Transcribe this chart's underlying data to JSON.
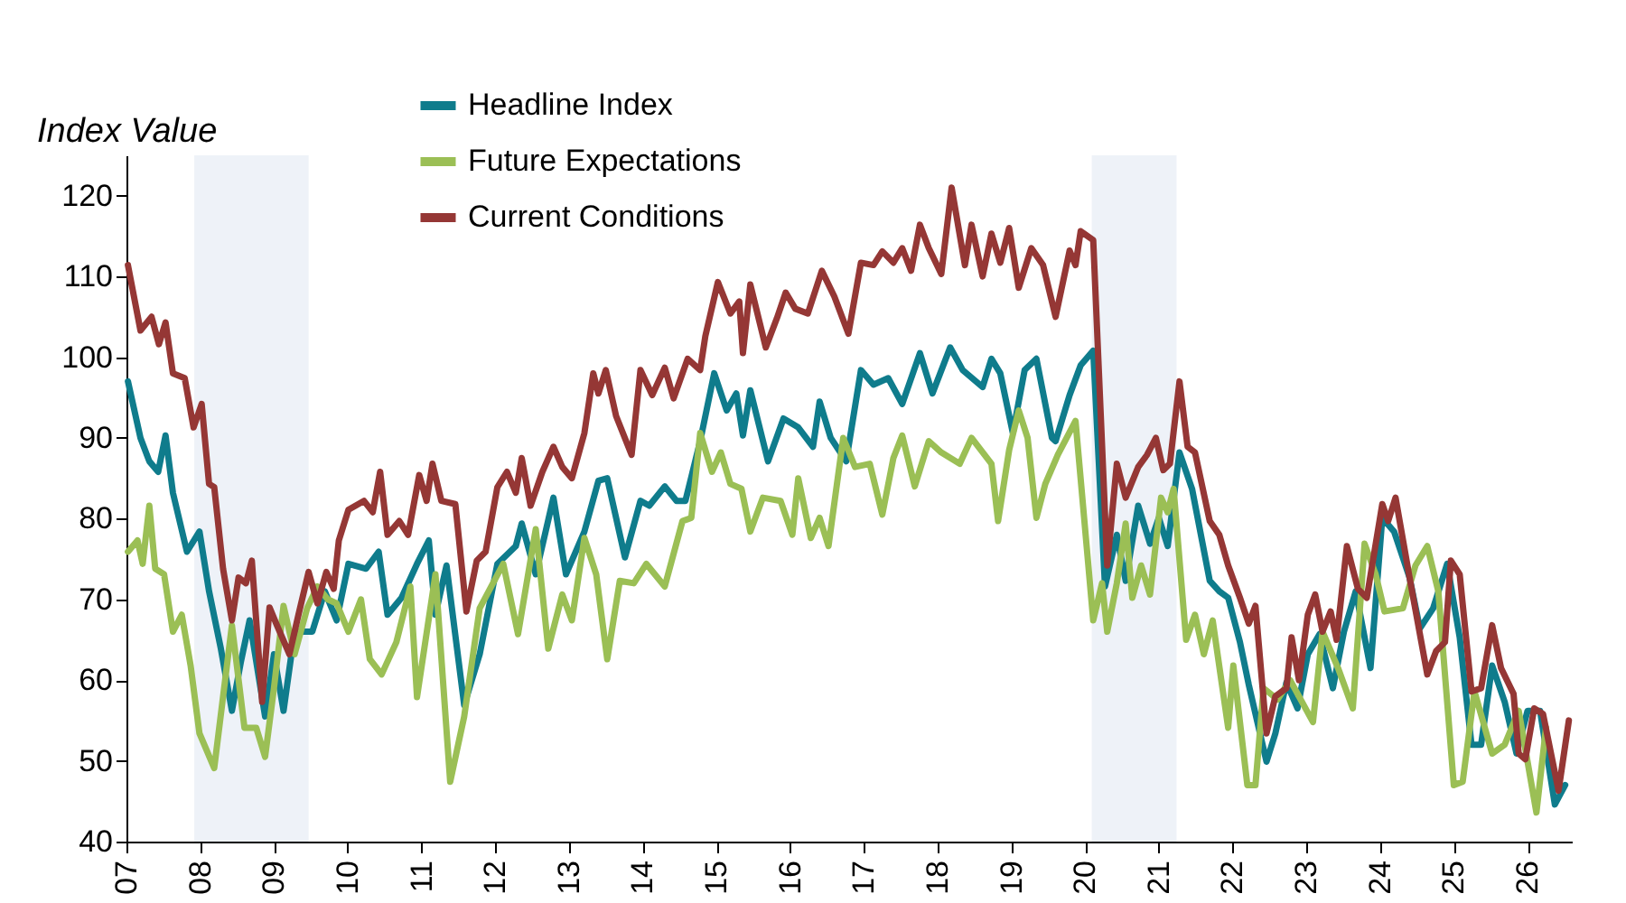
{
  "chart_data": {
    "type": "line",
    "ylabel": "Index Value",
    "xlim": [
      2007,
      2026.6
    ],
    "xticks": [
      {
        "value": 2007,
        "label": "07"
      },
      {
        "value": 2008,
        "label": "08"
      },
      {
        "value": 2009,
        "label": "09"
      },
      {
        "value": 2010,
        "label": "10"
      },
      {
        "value": 2011,
        "label": "11"
      },
      {
        "value": 2012,
        "label": "12"
      },
      {
        "value": 2013,
        "label": "13"
      },
      {
        "value": 2014,
        "label": "14"
      },
      {
        "value": 2015,
        "label": "15"
      },
      {
        "value": 2016,
        "label": "16"
      },
      {
        "value": 2017,
        "label": "17"
      },
      {
        "value": 2018,
        "label": "18"
      },
      {
        "value": 2019,
        "label": "19"
      },
      {
        "value": 2020,
        "label": "20"
      },
      {
        "value": 2021,
        "label": "21"
      },
      {
        "value": 2022,
        "label": "22"
      },
      {
        "value": 2023,
        "label": "23"
      },
      {
        "value": 2024,
        "label": "24"
      },
      {
        "value": 2025,
        "label": "25"
      },
      {
        "value": 2026,
        "label": "26"
      }
    ],
    "ylim": [
      40,
      125
    ],
    "yticks": [
      40,
      50,
      60,
      70,
      80,
      90,
      100,
      110,
      120
    ],
    "grid": false,
    "legend": "top",
    "line_style": "solid",
    "bands": [
      {
        "axis": "x",
        "from": 2007.92,
        "to": 2009.47,
        "color": "#eef2f8"
      },
      {
        "axis": "x",
        "from": 2020.09,
        "to": 2021.24,
        "color": "#eef2f8"
      }
    ],
    "series": [
      {
        "name": "Headline Index",
        "color": "#0f7c8c",
        "x": [
          2007.02,
          2007.19,
          2007.31,
          2007.43,
          2007.53,
          2007.63,
          2007.82,
          2007.99,
          2008.12,
          2008.28,
          2008.43,
          2008.55,
          2008.67,
          2008.88,
          2009.0,
          2009.13,
          2009.28,
          2009.52,
          2009.69,
          2009.85,
          2010.01,
          2010.25,
          2010.42,
          2010.54,
          2010.73,
          2010.94,
          2011.1,
          2011.19,
          2011.34,
          2011.58,
          2011.79,
          2012.03,
          2012.28,
          2012.36,
          2012.55,
          2012.79,
          2012.96,
          2013.21,
          2013.4,
          2013.52,
          2013.76,
          2013.97,
          2014.09,
          2014.3,
          2014.46,
          2014.58,
          2014.78,
          2014.97,
          2015.14,
          2015.27,
          2015.36,
          2015.46,
          2015.7,
          2015.91,
          2016.11,
          2016.31,
          2016.4,
          2016.55,
          2016.76,
          2016.96,
          2017.13,
          2017.33,
          2017.52,
          2017.76,
          2017.93,
          2018.17,
          2018.34,
          2018.61,
          2018.73,
          2018.85,
          2019.02,
          2019.18,
          2019.34,
          2019.55,
          2019.6,
          2019.79,
          2019.94,
          2020.11,
          2020.27,
          2020.43,
          2020.55,
          2020.72,
          2020.88,
          2021.0,
          2021.12,
          2021.28,
          2021.45,
          2021.69,
          2021.82,
          2021.94,
          2022.1,
          2022.22,
          2022.46,
          2022.58,
          2022.73,
          2022.88,
          2023.02,
          2023.18,
          2023.36,
          2023.51,
          2023.67,
          2023.87,
          2024.03,
          2024.19,
          2024.4,
          2024.54,
          2024.72,
          2024.91,
          2025.08,
          2025.24,
          2025.37,
          2025.52,
          2025.69,
          2025.85,
          2026.0,
          2026.17,
          2026.37,
          2026.51
        ],
        "values": [
          97,
          90,
          87.1,
          85.8,
          90.3,
          83.2,
          75.9,
          78.4,
          71,
          63.9,
          56.2,
          62.2,
          67.4,
          55.5,
          63.2,
          56.2,
          66,
          66,
          71,
          67.4,
          74.4,
          73.8,
          75.9,
          68.1,
          70.2,
          74.4,
          77.3,
          68.1,
          74.2,
          56.9,
          63.2,
          74.4,
          76.6,
          79.4,
          73.1,
          82.6,
          73.1,
          78.4,
          84.7,
          85,
          75.2,
          82.2,
          81.6,
          84,
          82.2,
          82.2,
          89.6,
          98,
          93.4,
          95.5,
          90.3,
          95.9,
          87.1,
          92.4,
          91.3,
          88.9,
          94.5,
          90,
          87.1,
          98.4,
          96.6,
          97.4,
          94.2,
          100.5,
          95.5,
          101.2,
          98.4,
          96.3,
          99.8,
          98,
          90.6,
          98.4,
          99.8,
          90,
          89.6,
          95.3,
          99,
          100.8,
          71.6,
          78,
          72.3,
          81.6,
          76.9,
          80.1,
          76.6,
          88.2,
          83.7,
          72.3,
          71,
          70.2,
          64.7,
          59.4,
          49.9,
          53.4,
          59.7,
          56.5,
          63.2,
          65.7,
          59,
          66,
          71,
          61.5,
          80.1,
          78.4,
          72.7,
          66.4,
          68.9,
          74.4,
          65.3,
          52,
          52,
          61.8,
          57.3,
          50.9,
          56.2,
          56.2,
          44.6,
          47
        ]
      },
      {
        "name": "Future Expectations",
        "color": "#9bbf55",
        "x": [
          2007.02,
          2007.15,
          2007.22,
          2007.31,
          2007.39,
          2007.51,
          2007.63,
          2007.75,
          2007.87,
          2007.99,
          2008.19,
          2008.43,
          2008.6,
          2008.76,
          2008.88,
          2009.0,
          2009.13,
          2009.28,
          2009.45,
          2009.59,
          2009.73,
          2009.85,
          2010.01,
          2010.18,
          2010.3,
          2010.46,
          2010.66,
          2010.85,
          2010.94,
          2011.19,
          2011.39,
          2011.58,
          2011.79,
          2012.11,
          2012.31,
          2012.55,
          2012.72,
          2012.91,
          2013.04,
          2013.21,
          2013.37,
          2013.52,
          2013.69,
          2013.88,
          2014.05,
          2014.3,
          2014.54,
          2014.66,
          2014.78,
          2014.94,
          2015.06,
          2015.19,
          2015.34,
          2015.46,
          2015.63,
          2015.87,
          2016.03,
          2016.11,
          2016.28,
          2016.4,
          2016.52,
          2016.72,
          2016.88,
          2017.08,
          2017.25,
          2017.4,
          2017.52,
          2017.69,
          2017.88,
          2018.05,
          2018.3,
          2018.46,
          2018.73,
          2018.82,
          2018.97,
          2019.1,
          2019.22,
          2019.34,
          2019.46,
          2019.63,
          2019.87,
          2020.11,
          2020.23,
          2020.3,
          2020.43,
          2020.55,
          2020.64,
          2020.76,
          2020.88,
          2021.03,
          2021.12,
          2021.2,
          2021.37,
          2021.49,
          2021.61,
          2021.73,
          2021.94,
          2022.01,
          2022.2,
          2022.31,
          2022.42,
          2022.61,
          2022.78,
          2023.09,
          2023.22,
          2023.43,
          2023.63,
          2023.79,
          2023.94,
          2024.06,
          2024.31,
          2024.48,
          2024.64,
          2024.79,
          2025.0,
          2025.12,
          2025.28,
          2025.52,
          2025.69,
          2025.88,
          2026.12,
          2026.25
        ],
        "values": [
          75.9,
          77.3,
          74.4,
          81.6,
          73.8,
          73.1,
          66,
          68.1,
          61.8,
          53.4,
          49.1,
          66.8,
          54.1,
          54.1,
          50.5,
          59,
          69.2,
          63.2,
          68.9,
          71.6,
          70,
          69.5,
          66,
          70,
          62.6,
          60.7,
          64.7,
          71.6,
          57.9,
          73.1,
          47.4,
          55.5,
          68.9,
          74.4,
          65.7,
          78.7,
          63.9,
          70.6,
          67.4,
          77.6,
          73.1,
          62.6,
          72.3,
          72,
          74.4,
          71.6,
          79.7,
          80.1,
          90.6,
          85.8,
          88.2,
          84.3,
          83.7,
          78.4,
          82.6,
          82.2,
          78,
          85,
          77.6,
          80.1,
          76.6,
          90,
          86.4,
          86.8,
          80.5,
          87.5,
          90.3,
          84,
          89.6,
          88.2,
          86.8,
          90,
          86.8,
          79.7,
          88.5,
          93.4,
          90,
          80.1,
          84.3,
          87.9,
          92.1,
          67.4,
          72,
          66,
          72,
          79.4,
          70.2,
          74.2,
          70.6,
          82.6,
          80.8,
          83.7,
          65,
          68.1,
          63.2,
          67.4,
          54.1,
          61.8,
          47,
          47,
          59,
          57.6,
          60,
          54.8,
          66,
          61.5,
          56.5,
          76.9,
          73.1,
          68.5,
          68.9,
          74.2,
          76.6,
          71,
          47,
          47.4,
          58.6,
          50.9,
          52,
          56.2,
          43.6,
          54.1
        ]
      },
      {
        "name": "Current Conditions",
        "color": "#953735",
        "x": [
          2007.02,
          2007.19,
          2007.34,
          2007.44,
          2007.53,
          2007.63,
          2007.79,
          2007.91,
          2008.02,
          2008.12,
          2008.19,
          2008.31,
          2008.43,
          2008.52,
          2008.62,
          2008.7,
          2008.84,
          2008.94,
          2009.04,
          2009.21,
          2009.33,
          2009.47,
          2009.59,
          2009.71,
          2009.81,
          2009.88,
          2010.01,
          2010.22,
          2010.34,
          2010.44,
          2010.54,
          2010.7,
          2010.82,
          2010.97,
          2011.07,
          2011.15,
          2011.27,
          2011.46,
          2011.61,
          2011.75,
          2011.87,
          2012.03,
          2012.16,
          2012.28,
          2012.36,
          2012.48,
          2012.64,
          2012.79,
          2012.91,
          2013.04,
          2013.21,
          2013.33,
          2013.4,
          2013.5,
          2013.64,
          2013.85,
          2013.97,
          2014.13,
          2014.3,
          2014.42,
          2014.61,
          2014.78,
          2014.85,
          2015.02,
          2015.19,
          2015.31,
          2015.36,
          2015.46,
          2015.67,
          2015.82,
          2015.94,
          2016.07,
          2016.24,
          2016.43,
          2016.6,
          2016.79,
          2016.96,
          2017.13,
          2017.25,
          2017.4,
          2017.52,
          2017.64,
          2017.76,
          2017.88,
          2018.05,
          2018.19,
          2018.37,
          2018.46,
          2018.61,
          2018.73,
          2018.85,
          2018.97,
          2019.1,
          2019.27,
          2019.43,
          2019.6,
          2019.79,
          2019.87,
          2019.94,
          2020.11,
          2020.3,
          2020.43,
          2020.55,
          2020.72,
          2020.84,
          2020.96,
          2021.06,
          2021.15,
          2021.28,
          2021.39,
          2021.49,
          2021.69,
          2021.82,
          2021.94,
          2022.1,
          2022.22,
          2022.31,
          2022.46,
          2022.58,
          2022.73,
          2022.8,
          2022.9,
          2023.02,
          2023.12,
          2023.22,
          2023.33,
          2023.41,
          2023.55,
          2023.7,
          2023.82,
          2024.03,
          2024.11,
          2024.21,
          2024.4,
          2024.64,
          2024.76,
          2024.88,
          2024.96,
          2025.08,
          2025.24,
          2025.37,
          2025.52,
          2025.64,
          2025.81,
          2025.88,
          2025.97,
          2026.09,
          2026.21,
          2026.42,
          2026.56
        ],
        "values": [
          111.4,
          103.3,
          105,
          101.6,
          104.3,
          98,
          97.4,
          91.3,
          94.2,
          84.3,
          83.9,
          73.8,
          67.4,
          72.7,
          72,
          74.8,
          57.3,
          69,
          66.8,
          63.2,
          68,
          73.4,
          69.5,
          73.4,
          71.3,
          77.3,
          81.1,
          82.2,
          80.8,
          85.8,
          78,
          79.7,
          78,
          85.4,
          82.2,
          86.8,
          82.2,
          81.8,
          68.5,
          74.8,
          75.9,
          83.9,
          85.8,
          83.2,
          87.5,
          81.6,
          85.8,
          88.9,
          86.4,
          85,
          90.6,
          98,
          95.5,
          98.4,
          92.7,
          87.9,
          98.4,
          95.3,
          98.7,
          94.9,
          99.8,
          98.4,
          102.6,
          109.3,
          105.4,
          106.9,
          100.5,
          109,
          101.2,
          104.8,
          108,
          106,
          105.4,
          110.7,
          107.5,
          102.9,
          111.7,
          111.4,
          113.1,
          111.7,
          113.5,
          110.7,
          116.4,
          113.5,
          110.3,
          121,
          111.4,
          116.4,
          110,
          115.3,
          111.7,
          116,
          108.6,
          113.5,
          111.4,
          105,
          113.2,
          111.4,
          115.6,
          114.5,
          74.2,
          86.8,
          82.6,
          86.4,
          87.9,
          90,
          86,
          86.8,
          97,
          88.9,
          88.2,
          79.7,
          78,
          74.2,
          70.2,
          67,
          69.2,
          53.4,
          58,
          59,
          65.3,
          60,
          68.1,
          70.6,
          66,
          68.5,
          65,
          76.6,
          71.3,
          70.2,
          81.8,
          79.7,
          82.6,
          72.7,
          60.7,
          63.6,
          64.7,
          74.8,
          73.1,
          58.6,
          59,
          66.8,
          61.5,
          58.3,
          50.9,
          50.2,
          56.5,
          55.8,
          46.3,
          55
        ]
      }
    ]
  }
}
